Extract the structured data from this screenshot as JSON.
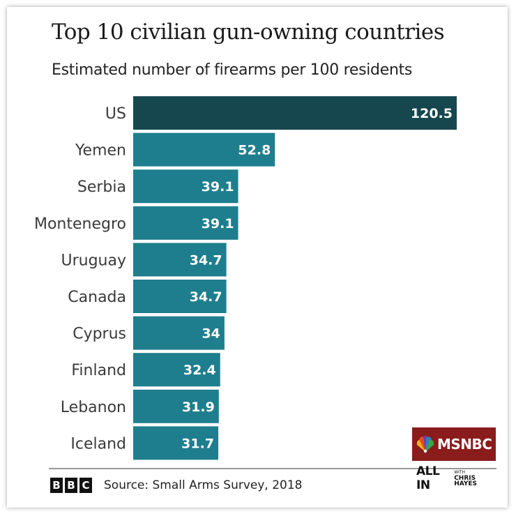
{
  "chart_data": {
    "type": "bar",
    "orientation": "horizontal",
    "title": "Top 10 civilian gun-owning countries",
    "subtitle": "Estimated number of firearms per 100 residents",
    "categories": [
      "US",
      "Yemen",
      "Serbia",
      "Montenegro",
      "Uruguay",
      "Canada",
      "Cyprus",
      "Finland",
      "Lebanon",
      "Iceland"
    ],
    "values": [
      120.5,
      52.8,
      39.1,
      39.1,
      34.7,
      34.7,
      34,
      32.4,
      31.9,
      31.7
    ],
    "value_labels": [
      "120.5",
      "52.8",
      "39.1",
      "39.1",
      "34.7",
      "34.7",
      "34",
      "32.4",
      "31.9",
      "31.7"
    ],
    "xlim": [
      0,
      120.5
    ],
    "colors": {
      "highlight": "#16474f",
      "bar": "#1f7e8e"
    },
    "xlabel": "",
    "ylabel": ""
  },
  "footer": {
    "bbc_letters": [
      "B",
      "B",
      "C"
    ],
    "source": "Source: Small Arms Survey, 2018"
  },
  "watermark": {
    "network": "MSNBC",
    "show_main": "ALL IN",
    "show_with": "WITH",
    "show_host": "CHRIS HAYES",
    "network_color": "#8a1c1c"
  }
}
